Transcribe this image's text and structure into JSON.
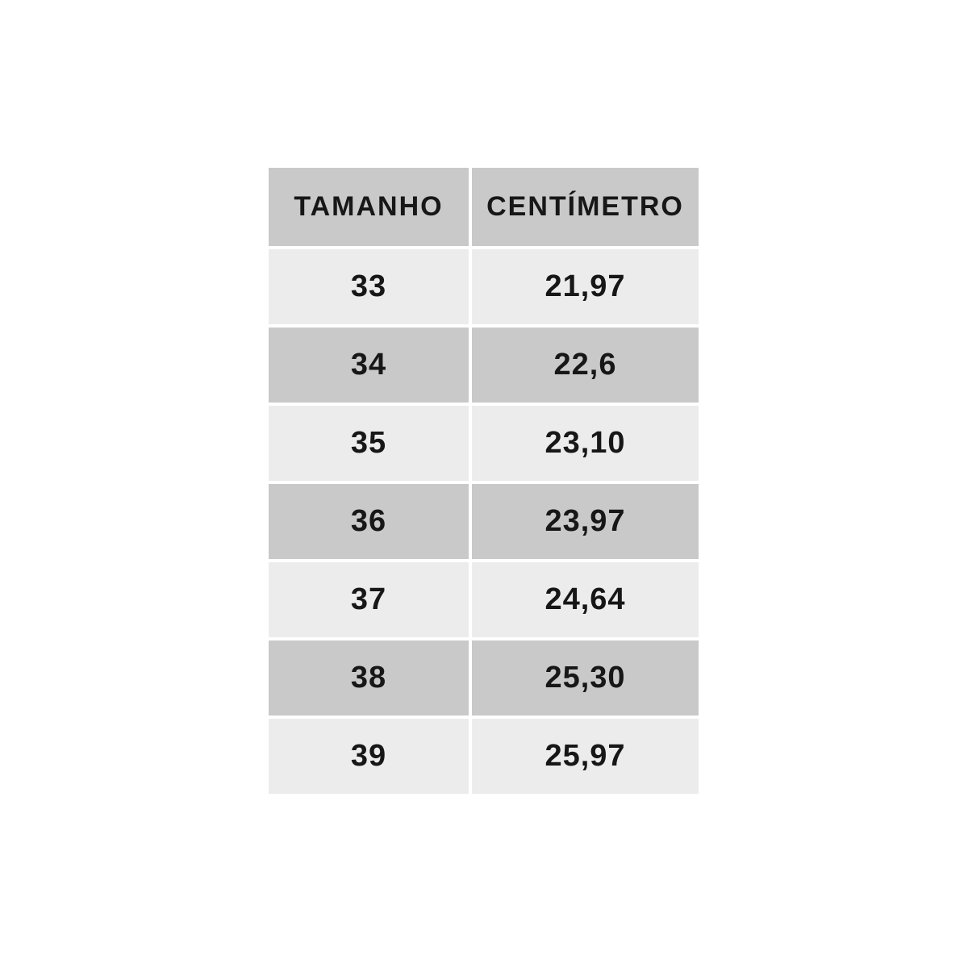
{
  "page": {
    "background_color": "#ffffff"
  },
  "table": {
    "columns": [
      {
        "label": "TAMANHO"
      },
      {
        "label": "CENTÍMETRO"
      }
    ],
    "rows": [
      {
        "tamanho": "33",
        "centimetro": "21,97"
      },
      {
        "tamanho": "34",
        "centimetro": "22,6"
      },
      {
        "tamanho": "35",
        "centimetro": "23,10"
      },
      {
        "tamanho": "36",
        "centimetro": "23,97"
      },
      {
        "tamanho": "37",
        "centimetro": "24,64"
      },
      {
        "tamanho": "38",
        "centimetro": "25,30"
      },
      {
        "tamanho": "39",
        "centimetro": "25,97"
      }
    ],
    "colors": {
      "header_bg": "#c9c9c9",
      "row_light_bg": "#ececec",
      "row_dark_bg": "#c9c9c9",
      "text": "#171717",
      "gap": "#ffffff"
    }
  },
  "chart_data": {
    "type": "table",
    "title": "",
    "columns": [
      "TAMANHO",
      "CENTÍMETRO"
    ],
    "rows": [
      [
        "33",
        "21,97"
      ],
      [
        "34",
        "22,6"
      ],
      [
        "35",
        "23,10"
      ],
      [
        "36",
        "23,97"
      ],
      [
        "37",
        "24,64"
      ],
      [
        "38",
        "25,30"
      ],
      [
        "39",
        "25,97"
      ]
    ]
  }
}
